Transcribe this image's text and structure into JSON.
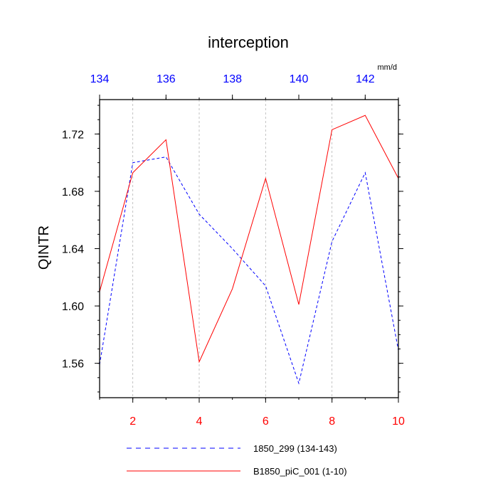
{
  "chart_data": {
    "type": "line",
    "title": "interception",
    "ylabel": "QINTR",
    "units": "mm/d",
    "grid": "vertical-dashed",
    "legend_position": "bottom",
    "bottom_axis": {
      "xlim": [
        1,
        10
      ],
      "ticks": [
        2,
        4,
        6,
        8,
        10
      ],
      "tick_labels": [
        "2",
        "4",
        "6",
        "8",
        "10"
      ],
      "color": "#ff0000"
    },
    "top_axis": {
      "xlim": [
        134,
        143
      ],
      "ticks": [
        134,
        136,
        138,
        140,
        142
      ],
      "tick_labels": [
        "134",
        "136",
        "138",
        "140",
        "142"
      ],
      "color": "#0000ff"
    },
    "y_axis": {
      "ylim": [
        1.536,
        1.744
      ],
      "ticks": [
        1.56,
        1.6,
        1.64,
        1.68,
        1.72
      ],
      "tick_labels": [
        "1.56",
        "1.60",
        "1.64",
        "1.68",
        "1.72"
      ]
    },
    "series": [
      {
        "name": "1850_299 (134-143)",
        "axis": "top",
        "color": "#0000ff",
        "dash": "dashed",
        "x": [
          134,
          135,
          136,
          137,
          138,
          139,
          140,
          141,
          142,
          143
        ],
        "values": [
          1.559,
          1.7,
          1.704,
          1.664,
          1.64,
          1.614,
          1.546,
          1.645,
          1.693,
          1.569
        ]
      },
      {
        "name": "B1850_piC_001 (1-10)",
        "axis": "bottom",
        "color": "#ff0000",
        "dash": "solid",
        "x": [
          1,
          2,
          3,
          4,
          5,
          6,
          7,
          8,
          9,
          10
        ],
        "values": [
          1.61,
          1.693,
          1.716,
          1.561,
          1.612,
          1.689,
          1.601,
          1.723,
          1.733,
          1.689
        ]
      }
    ]
  }
}
